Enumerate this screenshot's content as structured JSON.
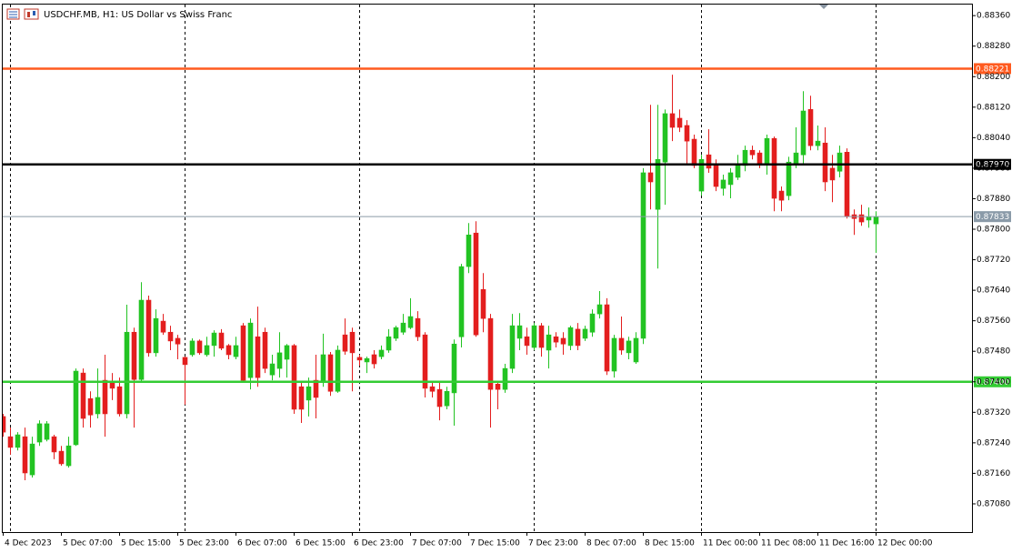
{
  "chart_data": {
    "type": "candlestick",
    "title": "USDCHF.MB, H1:  US Dollar vs Swiss Franc",
    "up_color": "#22c322",
    "down_color": "#e31e1e",
    "categories": [
      "4 Dec 2023",
      null,
      null,
      null,
      null,
      null,
      null,
      null,
      "5 Dec 07:00",
      null,
      null,
      null,
      null,
      null,
      null,
      null,
      "5 Dec 15:00",
      null,
      null,
      null,
      null,
      null,
      null,
      null,
      "5 Dec 23:00",
      null,
      null,
      null,
      null,
      null,
      null,
      null,
      "6 Dec 07:00",
      null,
      null,
      null,
      null,
      null,
      null,
      null,
      "6 Dec 15:00",
      null,
      null,
      null,
      null,
      null,
      null,
      null,
      "6 Dec 23:00",
      null,
      null,
      null,
      null,
      null,
      null,
      null,
      "7 Dec 07:00",
      null,
      null,
      null,
      null,
      null,
      null,
      null,
      "7 Dec 15:00",
      null,
      null,
      null,
      null,
      null,
      null,
      null,
      "7 Dec 23:00",
      null,
      null,
      null,
      null,
      null,
      null,
      null,
      "8 Dec 07:00",
      null,
      null,
      null,
      null,
      null,
      null,
      null,
      "8 Dec 15:00",
      null,
      null,
      null,
      null,
      null,
      null,
      null,
      "11 Dec 00:00",
      null,
      null,
      null,
      null,
      null,
      null,
      null,
      "11 Dec 08:00",
      null,
      null,
      null,
      null,
      null,
      null,
      null,
      "11 Dec 16:00",
      null,
      null,
      null,
      null,
      null,
      null,
      null,
      "12 Dec 00:00"
    ],
    "ohlc": [
      [
        0.87309,
        0.87316,
        0.87256,
        0.87268
      ],
      [
        0.87256,
        0.8728,
        0.87209,
        0.87228
      ],
      [
        0.87228,
        0.87268,
        0.8722,
        0.87261
      ],
      [
        0.87256,
        0.8728,
        0.87142,
        0.87161
      ],
      [
        0.87156,
        0.87256,
        0.87149,
        0.87237
      ],
      [
        0.87242,
        0.87299,
        0.87232,
        0.8729
      ],
      [
        0.87249,
        0.87297,
        0.87244,
        0.8729
      ],
      [
        0.87256,
        0.87261,
        0.87197,
        0.87216
      ],
      [
        0.87218,
        0.87232,
        0.8718,
        0.87185
      ],
      [
        0.8718,
        0.87256,
        0.87175,
        0.87232
      ],
      [
        0.87235,
        0.87435,
        0.87232,
        0.87428
      ],
      [
        0.87423,
        0.87435,
        0.8728,
        0.87304
      ],
      [
        0.87356,
        0.87375,
        0.8728,
        0.87313
      ],
      [
        0.87316,
        0.87435,
        0.87304,
        0.87359
      ],
      [
        0.87404,
        0.87471,
        0.87256,
        0.87316
      ],
      [
        0.87399,
        0.87423,
        0.87352,
        0.87383
      ],
      [
        0.87387,
        0.87411,
        0.87309,
        0.87316
      ],
      [
        0.87316,
        0.87602,
        0.87304,
        0.8753
      ],
      [
        0.8753,
        0.87542,
        0.8728,
        0.87406
      ],
      [
        0.87406,
        0.87661,
        0.87399,
        0.87614
      ],
      [
        0.87614,
        0.87626,
        0.87466,
        0.87476
      ],
      [
        0.87476,
        0.8759,
        0.87466,
        0.87566
      ],
      [
        0.87559,
        0.87578,
        0.87523,
        0.8753
      ],
      [
        0.8753,
        0.87547,
        0.87483,
        0.87507
      ],
      [
        0.87514,
        0.87523,
        0.87459,
        0.87499
      ],
      [
        0.87464,
        0.87466,
        0.8734,
        0.87445
      ],
      [
        0.87471,
        0.87514,
        0.87466,
        0.87507
      ],
      [
        0.87507,
        0.87511,
        0.87471,
        0.87476
      ],
      [
        0.87471,
        0.87518,
        0.87466,
        0.87495
      ],
      [
        0.87495,
        0.87535,
        0.87466,
        0.87528
      ],
      [
        0.87528,
        0.87538,
        0.87483,
        0.87488
      ],
      [
        0.87495,
        0.87499,
        0.87459,
        0.87471
      ],
      [
        0.87466,
        0.87518,
        0.87459,
        0.87495
      ],
      [
        0.87547,
        0.87554,
        0.87399,
        0.87404
      ],
      [
        0.87411,
        0.87566,
        0.8738,
        0.87554
      ],
      [
        0.87518,
        0.87597,
        0.87387,
        0.87411
      ],
      [
        0.8753,
        0.87542,
        0.87423,
        0.87435
      ],
      [
        0.87418,
        0.87471,
        0.87404,
        0.87447
      ],
      [
        0.87435,
        0.8753,
        0.87411,
        0.87476
      ],
      [
        0.87459,
        0.87499,
        0.87411,
        0.87495
      ],
      [
        0.87495,
        0.87499,
        0.87316,
        0.87328
      ],
      [
        0.87387,
        0.87399,
        0.87292,
        0.87328
      ],
      [
        0.87352,
        0.87411,
        0.87309,
        0.87387
      ],
      [
        0.87404,
        0.87471,
        0.87304,
        0.87359
      ],
      [
        0.87399,
        0.87526,
        0.87387,
        0.87471
      ],
      [
        0.87471,
        0.87478,
        0.87363,
        0.87375
      ],
      [
        0.87375,
        0.87495,
        0.87371,
        0.87483
      ],
      [
        0.87523,
        0.87566,
        0.87471,
        0.8748
      ],
      [
        0.8753,
        0.87542,
        0.87375,
        0.87476
      ],
      [
        0.87464,
        0.87471,
        0.87442,
        0.87457
      ],
      [
        0.87452,
        0.87466,
        0.87423,
        0.87461
      ],
      [
        0.87471,
        0.87483,
        0.87435,
        0.87447
      ],
      [
        0.87466,
        0.87495,
        0.87459,
        0.87483
      ],
      [
        0.87483,
        0.87538,
        0.87476,
        0.87518
      ],
      [
        0.87514,
        0.87547,
        0.87507,
        0.87542
      ],
      [
        0.8753,
        0.87578,
        0.87523,
        0.87554
      ],
      [
        0.87542,
        0.87619,
        0.87538,
        0.87571
      ],
      [
        0.87566,
        0.87585,
        0.87507,
        0.87518
      ],
      [
        0.87523,
        0.8753,
        0.87359,
        0.87383
      ],
      [
        0.87387,
        0.87399,
        0.87359,
        0.87375
      ],
      [
        0.8738,
        0.87399,
        0.87299,
        0.87335
      ],
      [
        0.87337,
        0.87387,
        0.87328,
        0.87375
      ],
      [
        0.87371,
        0.87511,
        0.87285,
        0.87499
      ],
      [
        0.87518,
        0.87709,
        0.8749,
        0.87702
      ],
      [
        0.87702,
        0.87816,
        0.87685,
        0.87785
      ],
      [
        0.8779,
        0.87821,
        0.87518,
        0.87523
      ],
      [
        0.87642,
        0.87685,
        0.8753,
        0.87566
      ],
      [
        0.87566,
        0.87578,
        0.8728,
        0.8738
      ],
      [
        0.87394,
        0.87399,
        0.87328,
        0.8738
      ],
      [
        0.8738,
        0.87447,
        0.87371,
        0.87435
      ],
      [
        0.87435,
        0.87578,
        0.87423,
        0.87547
      ],
      [
        0.87514,
        0.8758,
        0.87483,
        0.87547
      ],
      [
        0.87518,
        0.87542,
        0.87471,
        0.87495
      ],
      [
        0.8749,
        0.87554,
        0.87483,
        0.87547
      ],
      [
        0.87547,
        0.87554,
        0.87466,
        0.8749
      ],
      [
        0.87483,
        0.87547,
        0.87435,
        0.87523
      ],
      [
        0.87518,
        0.8753,
        0.8749,
        0.87504
      ],
      [
        0.87514,
        0.8753,
        0.87471,
        0.87499
      ],
      [
        0.87495,
        0.87547,
        0.87483,
        0.87542
      ],
      [
        0.87538,
        0.87554,
        0.87483,
        0.87495
      ],
      [
        0.87514,
        0.87547,
        0.87507,
        0.87538
      ],
      [
        0.8753,
        0.8759,
        0.87518,
        0.87578
      ],
      [
        0.87578,
        0.87638,
        0.87566,
        0.87602
      ],
      [
        0.87602,
        0.87619,
        0.87418,
        0.87428
      ],
      [
        0.87428,
        0.87523,
        0.87411,
        0.87514
      ],
      [
        0.87514,
        0.87571,
        0.87471,
        0.87483
      ],
      [
        0.87476,
        0.87518,
        0.87459,
        0.87507
      ],
      [
        0.87452,
        0.8753,
        0.87447,
        0.87514
      ],
      [
        0.87514,
        0.8796,
        0.87499,
        0.87948
      ],
      [
        0.87948,
        0.88126,
        0.87852,
        0.87924
      ],
      [
        0.87852,
        0.88126,
        0.87697,
        0.87983
      ],
      [
        0.87976,
        0.88114,
        0.87864,
        0.88103
      ],
      [
        0.88103,
        0.88205,
        0.88031,
        0.88067
      ],
      [
        0.88091,
        0.88114,
        0.88055,
        0.88067
      ],
      [
        0.88072,
        0.88086,
        0.87971,
        0.88031
      ],
      [
        0.88036,
        0.88048,
        0.8796,
        0.87967
      ],
      [
        0.879,
        0.87995,
        0.87888,
        0.87983
      ],
      [
        0.87995,
        0.88062,
        0.87948,
        0.8796
      ],
      [
        0.87967,
        0.87983,
        0.879,
        0.87912
      ],
      [
        0.87907,
        0.87943,
        0.87888,
        0.87929
      ],
      [
        0.87917,
        0.8796,
        0.87881,
        0.87948
      ],
      [
        0.87936,
        0.87995,
        0.87929,
        0.87971
      ],
      [
        0.87967,
        0.88019,
        0.87952,
        0.88007
      ],
      [
        0.88007,
        0.88019,
        0.87983,
        0.87995
      ],
      [
        0.88,
        0.88007,
        0.8796,
        0.87971
      ],
      [
        0.87971,
        0.88048,
        0.87943,
        0.88038
      ],
      [
        0.88038,
        0.88043,
        0.87847,
        0.87881
      ],
      [
        0.879,
        0.87912,
        0.87847,
        0.87876
      ],
      [
        0.87888,
        0.8799,
        0.87876,
        0.87976
      ],
      [
        0.87971,
        0.88067,
        0.8796,
        0.88
      ],
      [
        0.87995,
        0.88162,
        0.87967,
        0.8811
      ],
      [
        0.88114,
        0.8815,
        0.88007,
        0.88019
      ],
      [
        0.88019,
        0.88072,
        0.88007,
        0.88031
      ],
      [
        0.88026,
        0.88067,
        0.879,
        0.87924
      ],
      [
        0.8796,
        0.87995,
        0.87871,
        0.87929
      ],
      [
        0.87952,
        0.88019,
        0.87936,
        0.88
      ],
      [
        0.88002,
        0.88012,
        0.87828,
        0.87833
      ],
      [
        0.87838,
        0.87852,
        0.87785,
        0.87828
      ],
      [
        0.87838,
        0.87864,
        0.87809,
        0.87819
      ],
      [
        0.87824,
        0.87857,
        0.87804,
        0.87833
      ],
      [
        0.87814,
        0.87847,
        0.87738,
        0.87833
      ]
    ],
    "ylim": [
      0.87006,
      0.88389
    ],
    "yticks": [
      {
        "value": 0.8836,
        "label": "0.88360"
      },
      {
        "value": 0.8828,
        "label": "0.88280"
      },
      {
        "value": 0.882,
        "label": "0.88200"
      },
      {
        "value": 0.8812,
        "label": "0.88120"
      },
      {
        "value": 0.8804,
        "label": "0.88040"
      },
      {
        "value": 0.8796,
        "label": "0.87960"
      },
      {
        "value": 0.8788,
        "label": "0.87880"
      },
      {
        "value": 0.878,
        "label": "0.87800"
      },
      {
        "value": 0.8772,
        "label": "0.87720"
      },
      {
        "value": 0.8764,
        "label": "0.87640"
      },
      {
        "value": 0.8756,
        "label": "0.87560"
      },
      {
        "value": 0.8748,
        "label": "0.87480"
      },
      {
        "value": 0.874,
        "label": "0.87400"
      },
      {
        "value": 0.8732,
        "label": "0.87320"
      },
      {
        "value": 0.8724,
        "label": "0.87240"
      },
      {
        "value": 0.8716,
        "label": "0.87160"
      },
      {
        "value": 0.8708,
        "label": "0.87080"
      }
    ],
    "levels": [
      {
        "value": 0.88221,
        "label": "0.88221",
        "color": "#ff5a1f"
      },
      {
        "value": 0.8797,
        "label": "0.87970",
        "color": "#000000"
      },
      {
        "value": 0.874,
        "label": "0.87400",
        "color": "#33cc33"
      },
      {
        "value": 0.87833,
        "label": "0.87833",
        "color": "#8a9aa8"
      }
    ]
  }
}
